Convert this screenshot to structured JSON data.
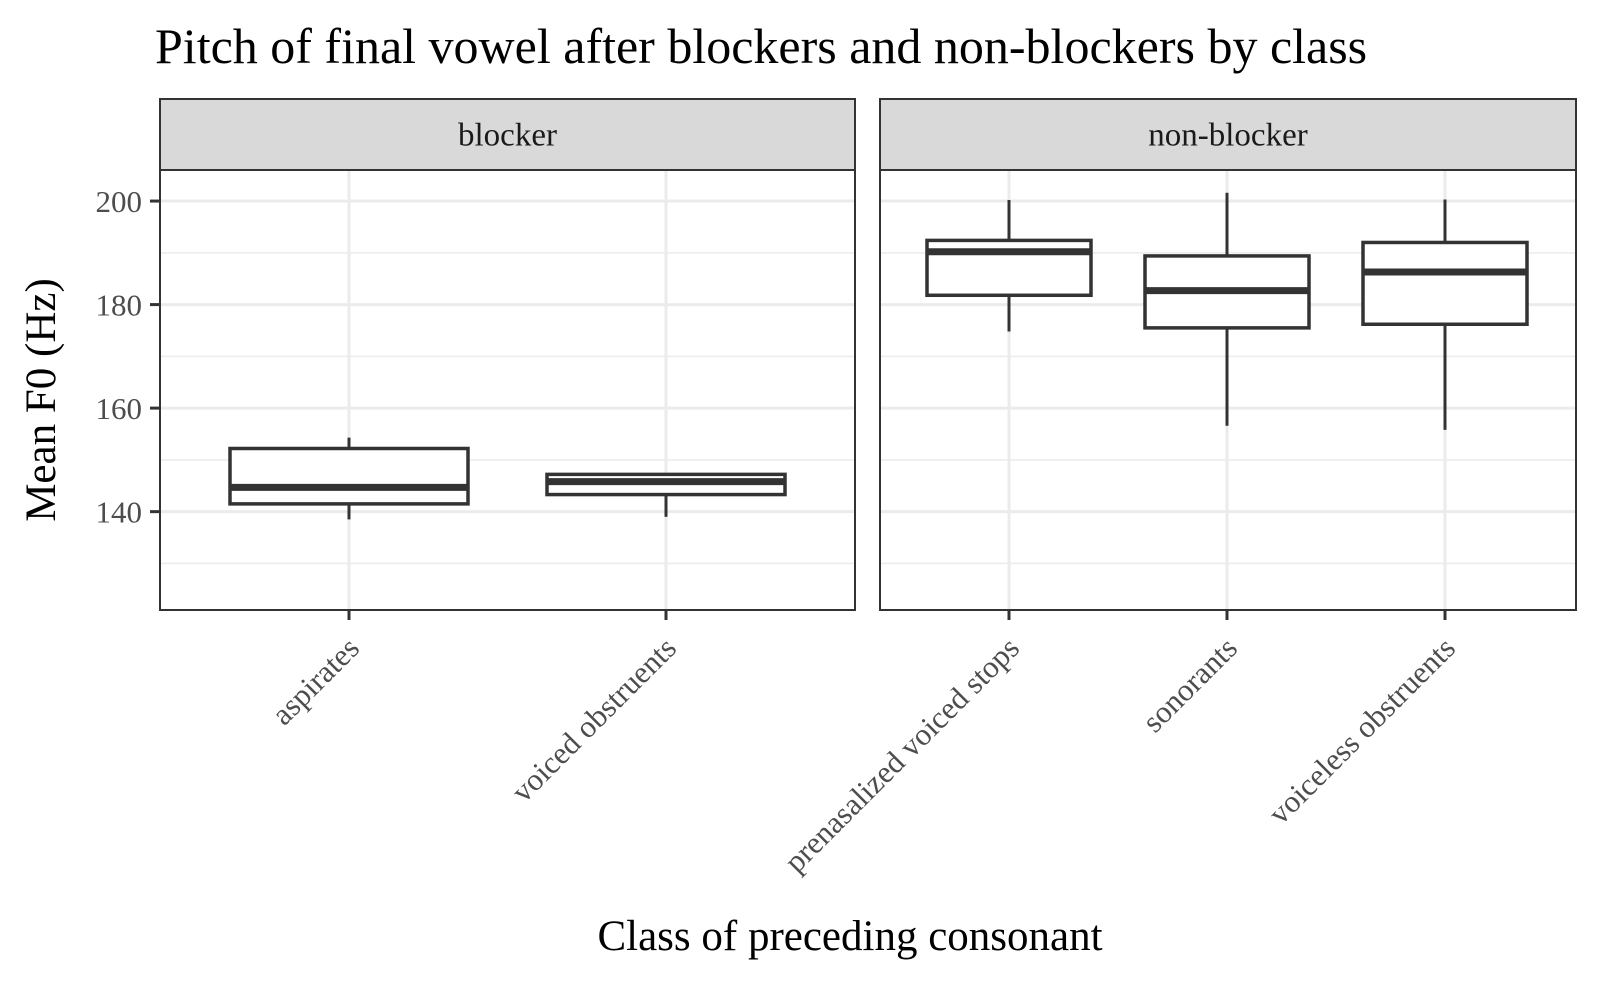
{
  "chart_data": {
    "type": "boxplot",
    "title": "Pitch of final vowel after blockers and non-blockers by class",
    "xlabel": "Class of preceding consonant",
    "ylabel": "Mean F0 (Hz)",
    "ylim": [
      121,
      206
    ],
    "y_ticks": [
      140,
      160,
      180,
      200
    ],
    "grid": true,
    "facets": [
      {
        "label": "blocker",
        "categories": [
          "aspirates",
          "voiced obstruents"
        ],
        "boxes": [
          {
            "category": "aspirates",
            "min": 138.5,
            "q1": 141.5,
            "median": 144.7,
            "q3": 152.2,
            "max": 154.3
          },
          {
            "category": "voiced obstruents",
            "min": 139.0,
            "q1": 143.3,
            "median": 145.8,
            "q3": 147.2,
            "max": 147.2
          }
        ]
      },
      {
        "label": "non-blocker",
        "categories": [
          "prenasalized voiced stops",
          "sonorants",
          "voiceless obstruents"
        ],
        "boxes": [
          {
            "category": "prenasalized voiced stops",
            "min": 174.8,
            "q1": 181.8,
            "median": 190.2,
            "q3": 192.4,
            "max": 200.2
          },
          {
            "category": "sonorants",
            "min": 156.6,
            "q1": 175.5,
            "median": 182.7,
            "q3": 189.4,
            "max": 201.6
          },
          {
            "category": "voiceless obstruents",
            "min": 155.8,
            "q1": 176.2,
            "median": 186.3,
            "q3": 192.0,
            "max": 200.3
          }
        ]
      }
    ]
  }
}
